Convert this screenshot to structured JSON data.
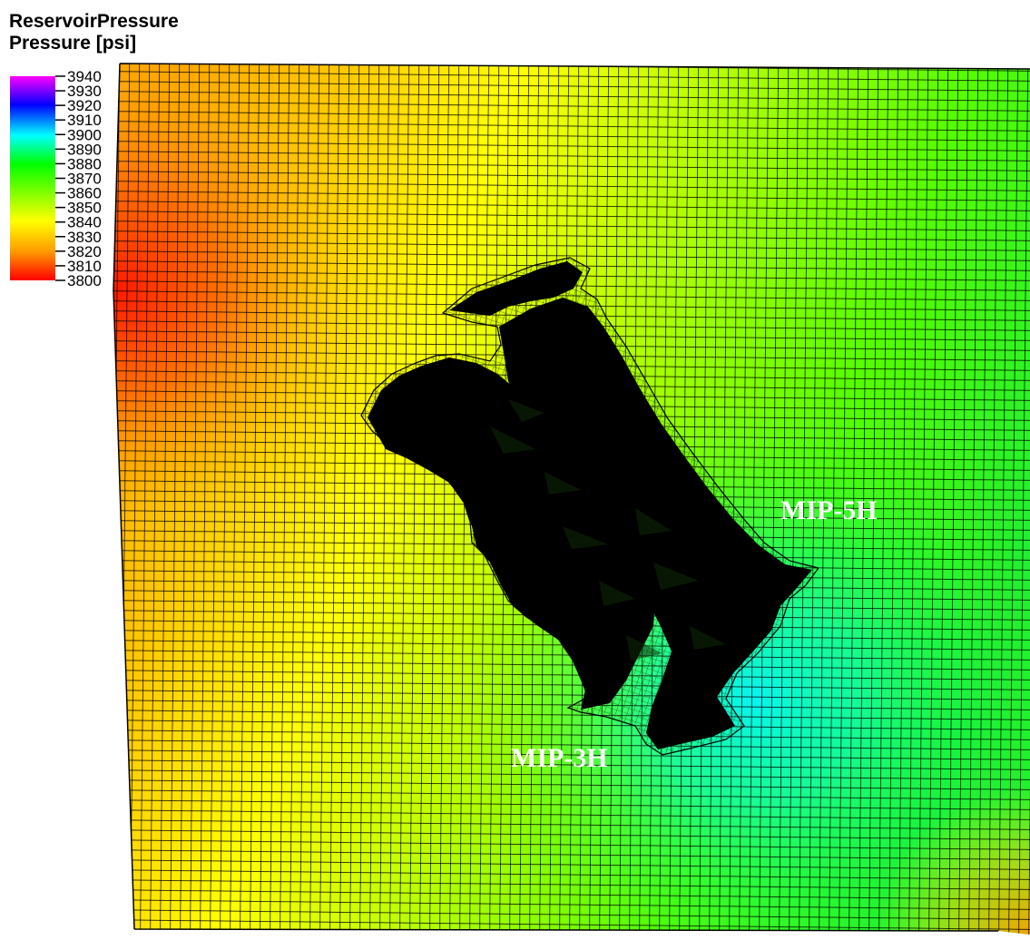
{
  "legend": {
    "title": "ReservoirPressure",
    "subtitle": "Pressure [psi]",
    "min": 3800,
    "max": 3940,
    "ticks": [
      3940,
      3930,
      3920,
      3910,
      3900,
      3890,
      3880,
      3870,
      3860,
      3850,
      3840,
      3830,
      3820,
      3810,
      3800
    ],
    "colorscale": [
      "#ff0000",
      "#ff9900",
      "#ffff00",
      "#80ff00",
      "#00ff00",
      "#00ffff",
      "#0000ff",
      "#ff00ff"
    ]
  },
  "wells": {
    "well_5h": "MIP-5H",
    "well_3h": "MIP-3H"
  },
  "colors": {
    "grid_line": "#000000",
    "fracture_zone": "#000000",
    "background": "#ffffff"
  }
}
